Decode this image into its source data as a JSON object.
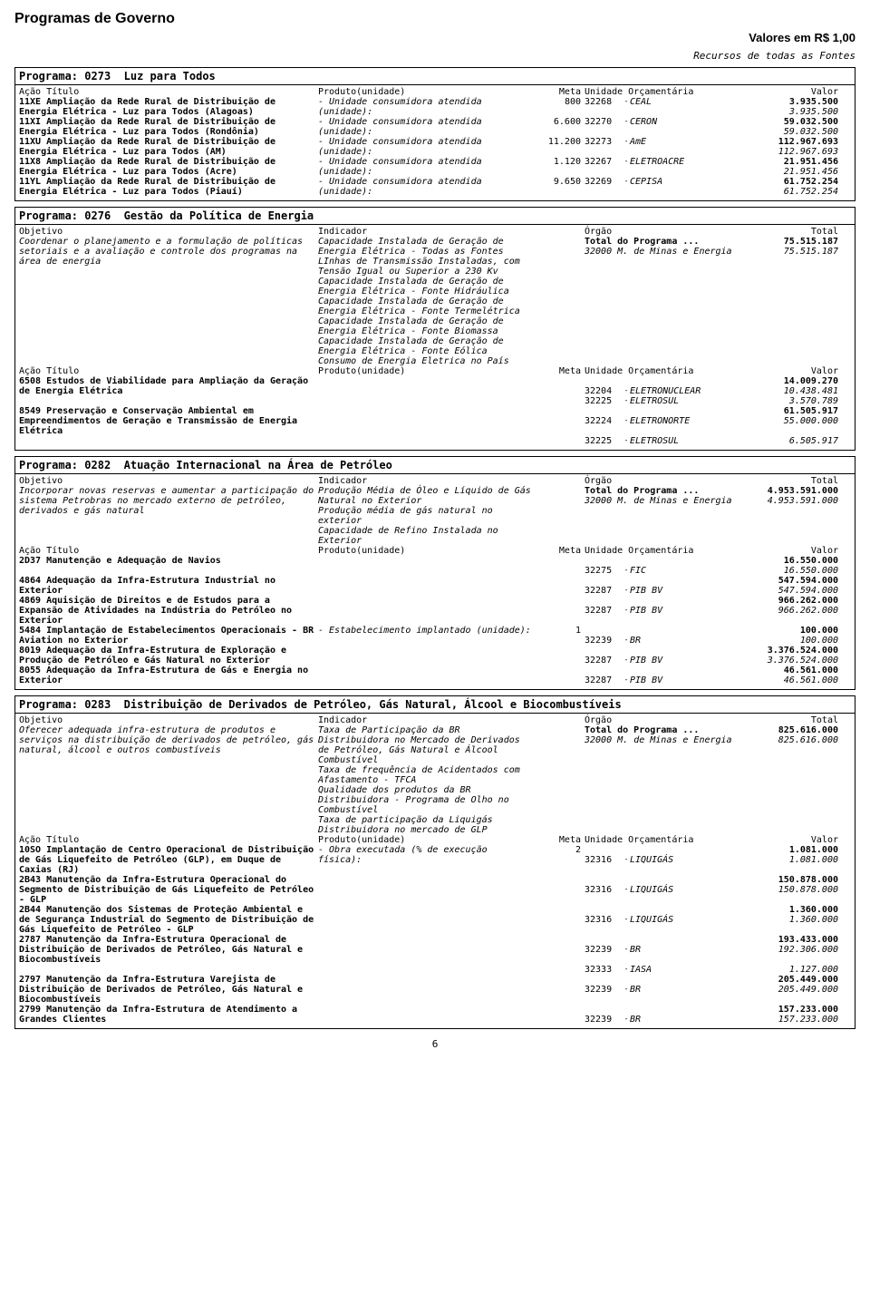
{
  "page": {
    "title": "Programas de Governo",
    "valores": "Valores em R$ 1,00",
    "fontes": "Recursos de todas as Fontes",
    "footer": "6"
  },
  "header_labels": {
    "programa": "Programa:",
    "acao": "Ação",
    "titulo": "Título",
    "produto": "Produto(unidade)",
    "meta": "Meta",
    "unidade": "Unidade Orçamentária",
    "valor": "Valor",
    "objetivo": "Objetivo",
    "indicador": "Indicador",
    "orgao": "Órgão",
    "total": "Total",
    "total_prog": "Total do Programa ..."
  },
  "prog_0273": {
    "code": "0273",
    "name": "Luz para Todos",
    "rows": [
      {
        "code": "11XE",
        "title": "Ampliação da Rede Rural de Distribuição de Energia Elétrica - Luz para Todos (Alagoas)",
        "produto": "- Unidade consumidora atendida (unidade):",
        "meta": "800",
        "uo_code": "32268",
        "uo_name": "CEAL",
        "v_total": "3.935.500",
        "v_sub": "3.935.500"
      },
      {
        "code": "11XI",
        "title": "Ampliação da Rede Rural de Distribuição de Energia Elétrica - Luz para Todos (Rondônia)",
        "produto": "- Unidade consumidora atendida (unidade):",
        "meta": "6.600",
        "uo_code": "32270",
        "uo_name": "CERON",
        "v_total": "59.032.500",
        "v_sub": "59.032.500"
      },
      {
        "code": "11XU",
        "title": "Ampliação da Rede Rural de Distribuição de Energia Elétrica - Luz para Todos (AM)",
        "produto": "- Unidade consumidora atendida (unidade):",
        "meta": "11.200",
        "uo_code": "32273",
        "uo_name": "AmE",
        "v_total": "112.967.693",
        "v_sub": "112.967.693"
      },
      {
        "code": "11X8",
        "title": "Ampliação da Rede Rural de Distribuição de Energia Elétrica - Luz para Todos (Acre)",
        "produto": "- Unidade consumidora atendida (unidade):",
        "meta": "1.120",
        "uo_code": "32267",
        "uo_name": "ELETROACRE",
        "v_total": "21.951.456",
        "v_sub": "21.951.456"
      },
      {
        "code": "11YL",
        "title": "Ampliação da Rede Rural de Distribuição de Energia Elétrica - Luz para Todos (Piauí)",
        "produto": "- Unidade consumidora atendida (unidade):",
        "meta": "9.650",
        "uo_code": "32269",
        "uo_name": "CEPISA",
        "v_total": "61.752.254",
        "v_sub": "61.752.254"
      }
    ]
  },
  "prog_0276": {
    "code": "0276",
    "name": "Gestão da Política de Energia",
    "objetivo": "Coordenar o planejamento e a formulação de políticas setoriais e a avaliação e controle dos programas na área de energia",
    "indicadores": [
      "Capacidade Instalada de Geração de Energia Elétrica - Todas as Fontes",
      "LInhas de Transmissão Instaladas, com Tensão Igual ou Superior a 230 Kv",
      "Capacidade Instalada de Geração de Energia Elétrica - Fonte Hidráulica",
      "Capacidade Instalada de Geração de Energia Elétrica - Fonte Termelétrica",
      "Capacidade Instalada de Geração de Energia Elétrica - Fonte Biomassa",
      "Capacidade Instalada de Geração de Energia Elétrica - Fonte Eólica",
      "Consumo de Energia Eletrica no País"
    ],
    "orgao_code": "32000",
    "orgao_name": "M. de Minas e Energia",
    "total_programa": "75.515.187",
    "total_orgao": "75.515.187",
    "acoes": [
      {
        "code": "6508",
        "title": "Estudos de Viabilidade para Ampliação da Geração de Energia Elétrica",
        "v_total": "14.009.270",
        "subs": [
          {
            "uo_code": "32204",
            "uo_name": "ELETRONUCLEAR",
            "v": "10.438.481"
          },
          {
            "uo_code": "32225",
            "uo_name": "ELETROSUL",
            "v": "3.570.789"
          }
        ]
      },
      {
        "code": "8549",
        "title": "Preservação e Conservação Ambiental em Empreendimentos de Geração e Transmissão de Energia Elétrica",
        "v_total": "61.505.917",
        "subs": [
          {
            "uo_code": "32224",
            "uo_name": "ELETRONORTE",
            "v": "55.000.000"
          },
          {
            "uo_code": "32225",
            "uo_name": "ELETROSUL",
            "v": "6.505.917"
          }
        ]
      }
    ]
  },
  "prog_0282": {
    "code": "0282",
    "name": "Atuação Internacional na Área de Petróleo",
    "objetivo": "Incorporar novas reservas e aumentar a participação do sistema Petrobras no mercado externo de petróleo, derivados e gás natural",
    "indicadores": [
      "Produção Média de Óleo e Líquido de Gás Natural no Exterior",
      "Produção média de gás natural no exterior",
      "Capacidade de Refino Instalada no Exterior"
    ],
    "orgao_code": "32000",
    "orgao_name": "M. de Minas e Energia",
    "total_programa": "4.953.591.000",
    "total_orgao": "4.953.591.000",
    "acoes": [
      {
        "code": "2D37",
        "title": "Manutenção e Adequação de Navios",
        "v_total": "16.550.000",
        "subs": [
          {
            "uo_code": "32275",
            "uo_name": "FIC",
            "v": "16.550.000"
          }
        ]
      },
      {
        "code": "4864",
        "title": "Adequação da Infra-Estrutura Industrial no Exterior",
        "v_total": "547.594.000",
        "subs": [
          {
            "uo_code": "32287",
            "uo_name": "PIB BV",
            "v": "547.594.000"
          }
        ]
      },
      {
        "code": "4869",
        "title": "Aquisição de Direitos e de Estudos para a Expansão de Atividades na Indústria do Petróleo no Exterior",
        "v_total": "966.262.000",
        "subs": [
          {
            "uo_code": "32287",
            "uo_name": "PIB BV",
            "v": "966.262.000"
          }
        ]
      },
      {
        "code": "5484",
        "title": "Implantação de Estabelecimentos Operacionais - BR Aviation no Exterior",
        "produto": "- Estabelecimento implantado (unidade):",
        "meta": "1",
        "v_total": "100.000",
        "subs": [
          {
            "uo_code": "32239",
            "uo_name": "BR",
            "v": "100.000"
          }
        ]
      },
      {
        "code": "8019",
        "title": "Adequação da Infra-Estrutura de Exploração e Produção de Petróleo e Gás Natural no Exterior",
        "v_total": "3.376.524.000",
        "subs": [
          {
            "uo_code": "32287",
            "uo_name": "PIB BV",
            "v": "3.376.524.000"
          }
        ]
      },
      {
        "code": "8055",
        "title": "Adequação da Infra-Estrutura de Gás e Energia no Exterior",
        "v_total": "46.561.000",
        "subs": [
          {
            "uo_code": "32287",
            "uo_name": "PIB BV",
            "v": "46.561.000"
          }
        ]
      }
    ]
  },
  "prog_0283": {
    "code": "0283",
    "name": "Distribuição de Derivados de Petróleo, Gás Natural, Álcool e Biocombustíveis",
    "objetivo": "Oferecer adequada infra-estrutura de produtos e serviços na distribuição de derivados de petróleo, gás natural, álcool e outros combustíveis",
    "indicadores": [
      "Taxa de Participação da BR Distribuidora no Mercado de Derivados de Petróleo, Gás Natural e Álcool Combustível",
      "Taxa de frequência de Acidentados com Afastamento - TFCA",
      "Qualidade dos produtos da BR Distribuidora - Programa de Olho no Combustível",
      "Taxa de participação da Liquigás Distribuidora no mercado de GLP"
    ],
    "orgao_code": "32000",
    "orgao_name": "M. de Minas e Energia",
    "total_programa": "825.616.000",
    "total_orgao": "825.616.000",
    "acoes": [
      {
        "code": "10SO",
        "title": "Implantação de Centro Operacional de Distribuição de Gás Liquefeito de Petróleo (GLP), em Duque de Caxias (RJ)",
        "produto": "- Obra executada (% de execução física):",
        "meta": "2",
        "v_total": "1.081.000",
        "subs": [
          {
            "uo_code": "32316",
            "uo_name": "LIQUIGÁS",
            "v": "1.081.000"
          }
        ]
      },
      {
        "code": "2B43",
        "title": "Manutenção da Infra-Estrutura Operacional do Segmento de Distribuição de Gás Liquefeito de Petróleo - GLP",
        "v_total": "150.878.000",
        "subs": [
          {
            "uo_code": "32316",
            "uo_name": "LIQUIGÁS",
            "v": "150.878.000"
          }
        ]
      },
      {
        "code": "2B44",
        "title": "Manutenção dos Sistemas de Proteção Ambiental e de Segurança Industrial do Segmento de Distribuição de Gás Liquefeito de Petróleo - GLP",
        "v_total": "1.360.000",
        "subs": [
          {
            "uo_code": "32316",
            "uo_name": "LIQUIGÁS",
            "v": "1.360.000"
          }
        ]
      },
      {
        "code": "2787",
        "title": "Manutenção da Infra-Estrutura Operacional de Distribuição de Derivados de Petróleo, Gás Natural e Biocombustíveis",
        "v_total": "193.433.000",
        "subs": [
          {
            "uo_code": "32239",
            "uo_name": "BR",
            "v": "192.306.000"
          },
          {
            "uo_code": "32333",
            "uo_name": "IASA",
            "v": "1.127.000"
          }
        ]
      },
      {
        "code": "2797",
        "title": "Manutenção da Infra-Estrutura Varejista de Distribuição de Derivados de Petróleo, Gás Natural e Biocombustíveis",
        "v_total": "205.449.000",
        "subs": [
          {
            "uo_code": "32239",
            "uo_name": "BR",
            "v": "205.449.000"
          }
        ]
      },
      {
        "code": "2799",
        "title": "Manutenção da Infra-Estrutura de Atendimento a Grandes Clientes",
        "v_total": "157.233.000",
        "subs": [
          {
            "uo_code": "32239",
            "uo_name": "BR",
            "v": "157.233.000"
          }
        ]
      }
    ]
  }
}
